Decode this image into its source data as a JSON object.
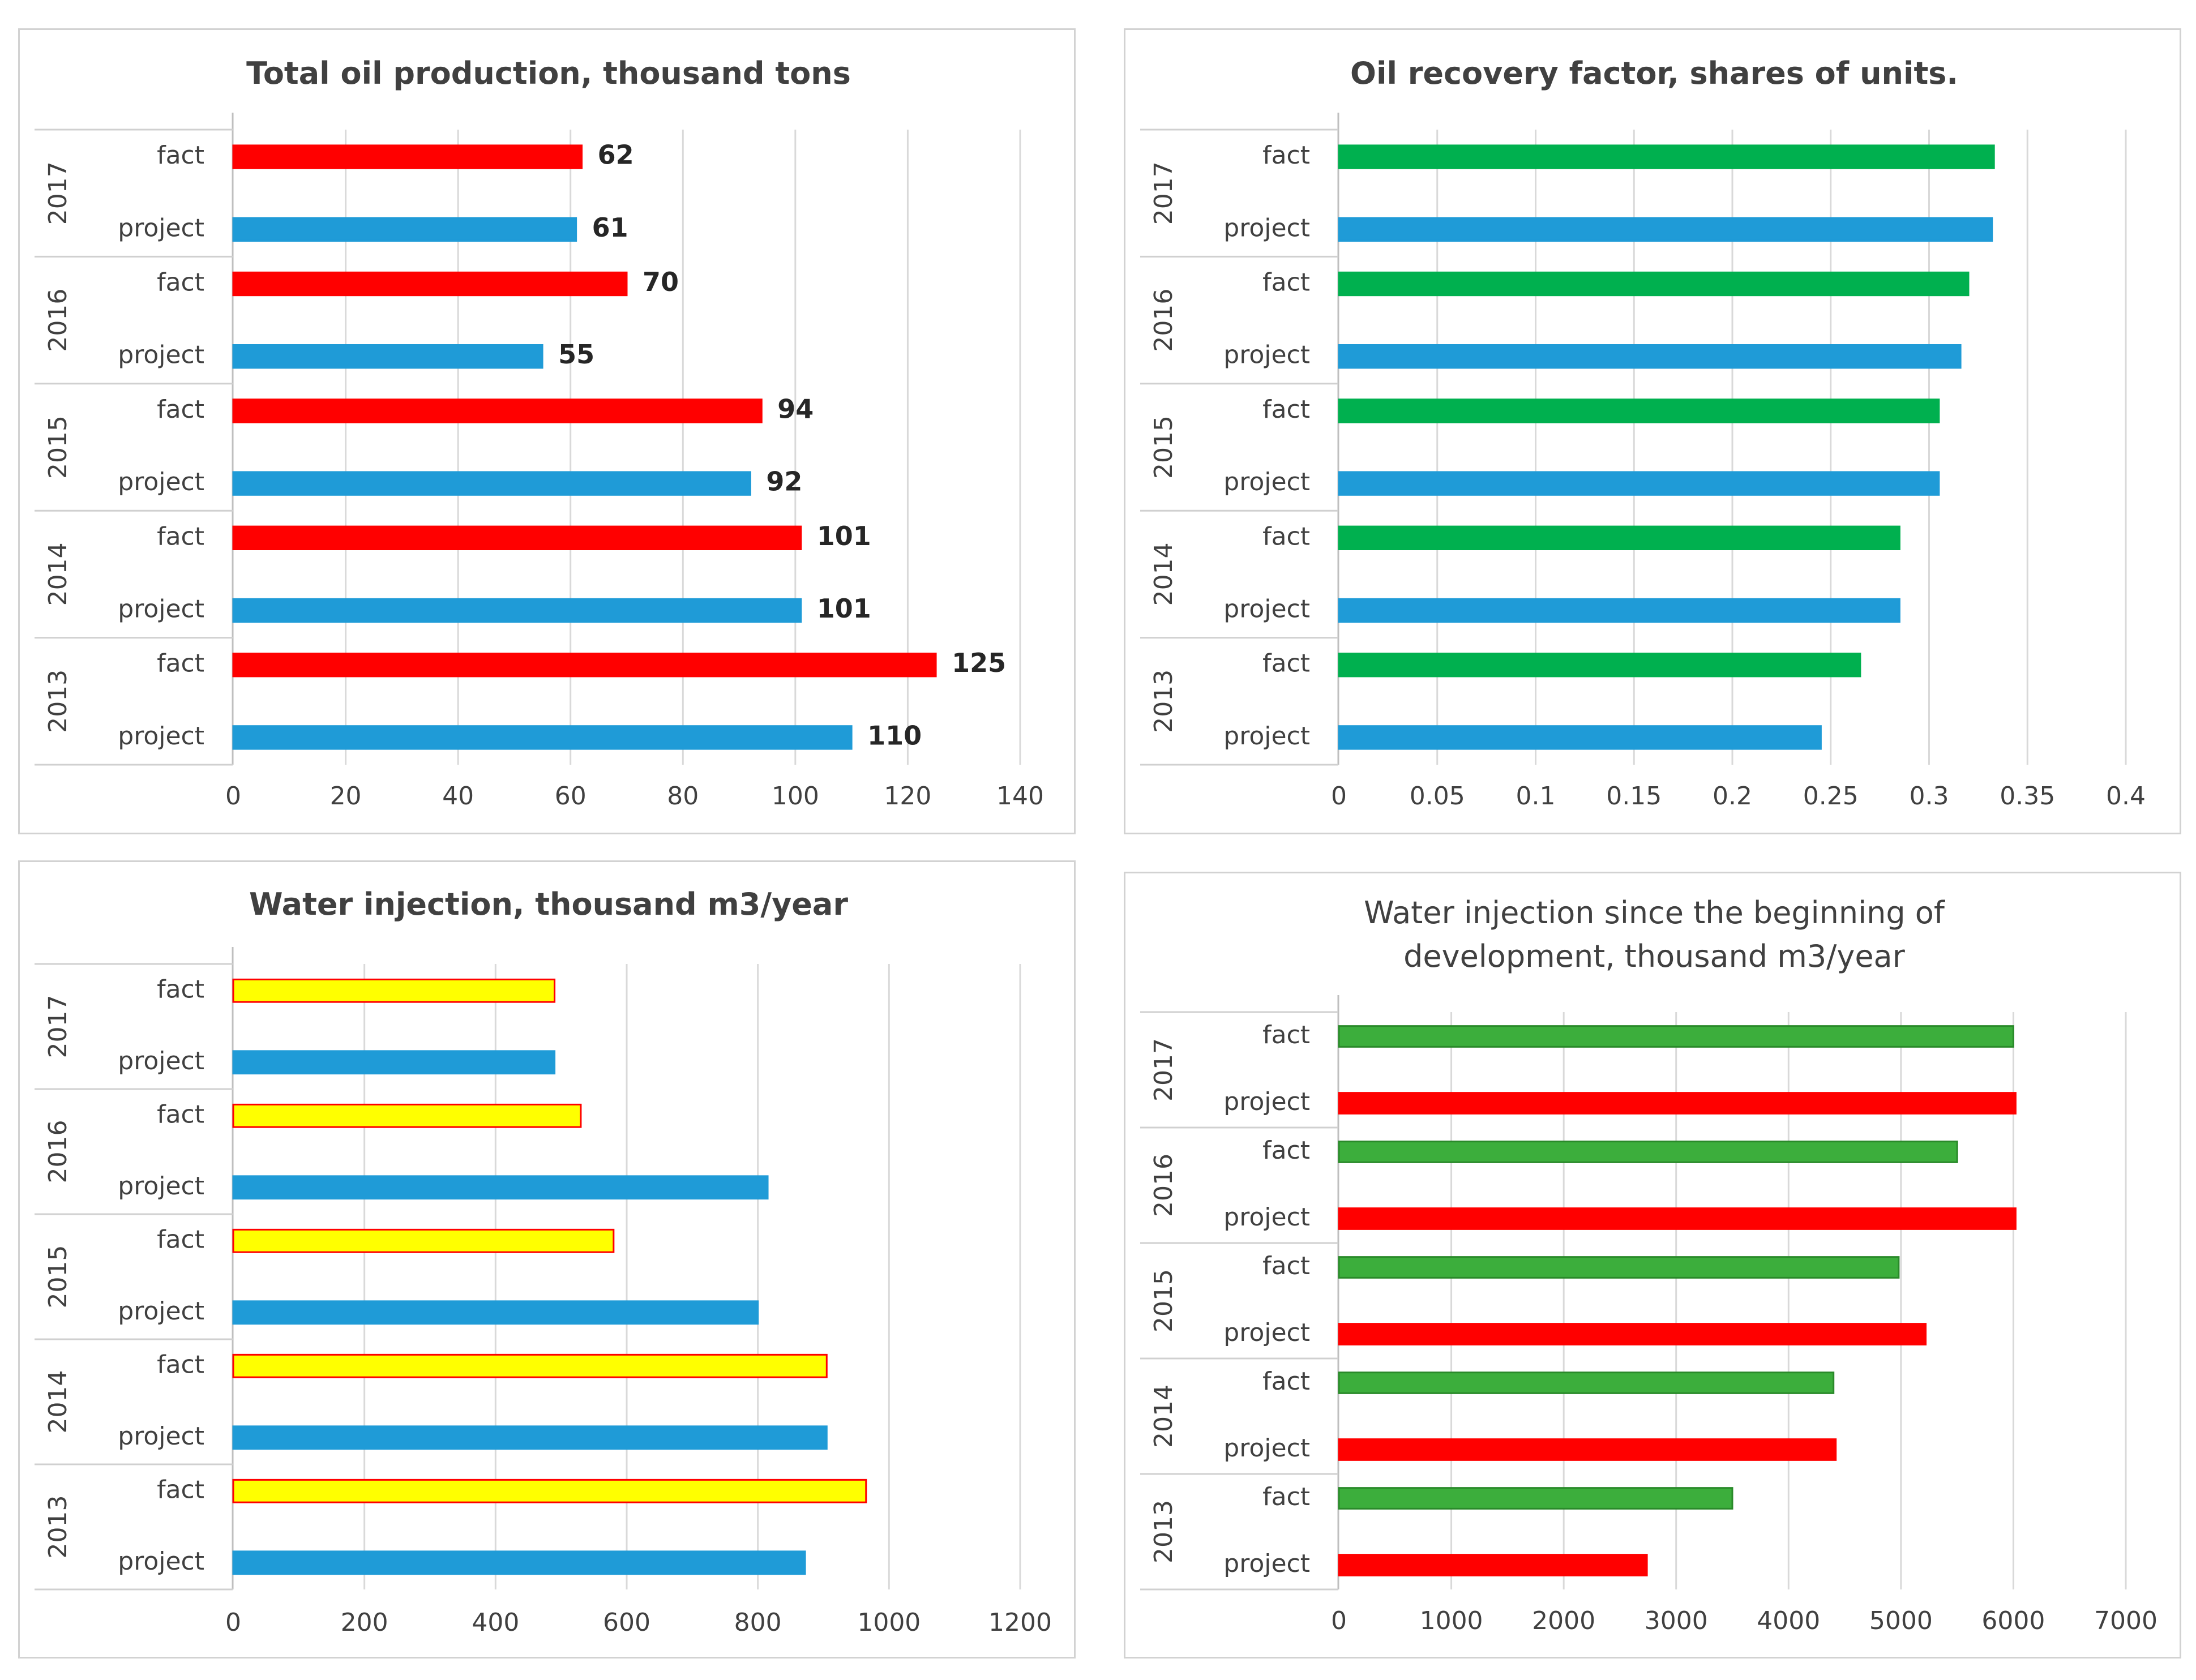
{
  "chart_data": [
    {
      "type": "bar",
      "orientation": "horizontal",
      "title": "Total oil production, thousand tons",
      "groups": [
        "2017",
        "2016",
        "2015",
        "2014",
        "2013"
      ],
      "rows": [
        "fact",
        "project"
      ],
      "series": [
        {
          "name": "fact",
          "values": [
            62,
            70,
            94,
            101,
            125
          ],
          "color": "#ff0000",
          "stroke": "#ff0000"
        },
        {
          "name": "project",
          "values": [
            61,
            55,
            92,
            101,
            110
          ],
          "color": "#1f9bd7",
          "stroke": "#1f9bd7"
        }
      ],
      "data_labels": true,
      "xlim": [
        0,
        140
      ],
      "xticks": [
        "0",
        "20",
        "40",
        "60",
        "80",
        "100",
        "120",
        "140"
      ],
      "grid": true
    },
    {
      "type": "bar",
      "orientation": "horizontal",
      "title": "Oil recovery factor, shares of units.",
      "groups": [
        "2017",
        "2016",
        "2015",
        "2014",
        "2013"
      ],
      "rows": [
        "fact",
        "project"
      ],
      "series": [
        {
          "name": "fact",
          "values": [
            0.333,
            0.32,
            0.305,
            0.285,
            0.265
          ],
          "color": "#00b04f",
          "stroke": "#00b04f"
        },
        {
          "name": "project",
          "values": [
            0.332,
            0.316,
            0.305,
            0.285,
            0.245
          ],
          "color": "#1f9bd7",
          "stroke": "#1f9bd7"
        }
      ],
      "data_labels": false,
      "xlim": [
        0,
        0.4
      ],
      "xticks": [
        "0",
        "0.05",
        "0.1",
        "0.15",
        "0.2",
        "0.25",
        "0.3",
        "0.35",
        "0.4"
      ],
      "grid": true
    },
    {
      "type": "bar",
      "orientation": "horizontal",
      "title": "Water injection, thousand m3/year",
      "groups": [
        "2017",
        "2016",
        "2015",
        "2014",
        "2013"
      ],
      "rows": [
        "fact",
        "project"
      ],
      "series": [
        {
          "name": "fact",
          "values": [
            490,
            530,
            580,
            905,
            965
          ],
          "color": "#ffff00",
          "stroke": "#ff0000"
        },
        {
          "name": "project",
          "values": [
            490,
            815,
            800,
            905,
            872
          ],
          "color": "#1f9bd7",
          "stroke": "#1f9bd7"
        }
      ],
      "data_labels": false,
      "xlim": [
        0,
        1200
      ],
      "xticks": [
        "0",
        "200",
        "400",
        "600",
        "800",
        "1000",
        "1200"
      ],
      "grid": true
    },
    {
      "type": "bar",
      "orientation": "horizontal",
      "title": "Water injection since the beginning of development, thousand m3/year",
      "title_lines": [
        "Water injection since the beginning of",
        "development, thousand m3/year"
      ],
      "groups": [
        "2017",
        "2016",
        "2015",
        "2014",
        "2013"
      ],
      "rows": [
        "fact",
        "project"
      ],
      "series": [
        {
          "name": "fact",
          "values": [
            6000,
            5500,
            4980,
            4400,
            3500
          ],
          "color": "#3cae3c",
          "stroke": "#2a8a2a"
        },
        {
          "name": "project",
          "values": [
            6020,
            6020,
            5220,
            4420,
            2740
          ],
          "color": "#ff0000",
          "stroke": "#ff0000"
        }
      ],
      "data_labels": false,
      "xlim": [
        0,
        7000
      ],
      "xticks": [
        "0",
        "1000",
        "2000",
        "3000",
        "4000",
        "5000",
        "6000",
        "7000"
      ],
      "grid": true
    }
  ]
}
